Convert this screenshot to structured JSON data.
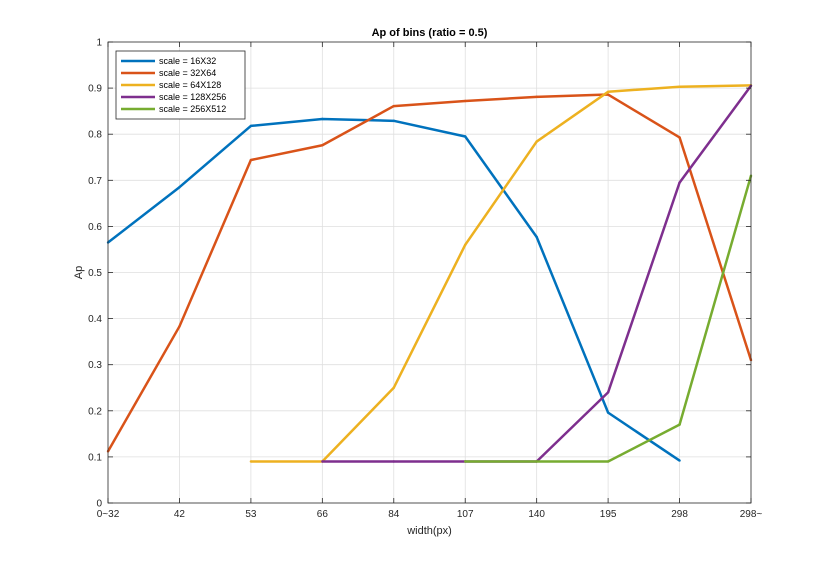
{
  "chart_data": {
    "type": "line",
    "title": "Ap of bins (ratio = 0.5)",
    "xlabel": "width(px)",
    "ylabel": "Ap",
    "categories": [
      "0~32",
      "42",
      "53",
      "66",
      "84",
      "107",
      "140",
      "195",
      "298",
      "298~"
    ],
    "ylim": [
      0,
      1
    ],
    "yticks": [
      "0",
      "0.1",
      "0.2",
      "0.3",
      "0.4",
      "0.5",
      "0.6",
      "0.7",
      "0.8",
      "0.9",
      "1"
    ],
    "grid": true,
    "legend_position": "top-left",
    "series": [
      {
        "name": "scale = 16X32",
        "color": "#0072BD",
        "values": [
          0.565,
          0.685,
          0.818,
          0.833,
          0.829,
          0.795,
          0.577,
          0.196,
          0.092,
          null
        ]
      },
      {
        "name": "scale = 32X64",
        "color": "#D95319",
        "values": [
          0.112,
          0.383,
          0.744,
          0.776,
          0.861,
          0.872,
          0.881,
          0.886,
          0.793,
          0.31
        ]
      },
      {
        "name": "scale = 64X128",
        "color": "#EDB120",
        "values": [
          null,
          null,
          0.09,
          0.09,
          0.25,
          0.56,
          0.784,
          0.892,
          0.903,
          0.906
        ]
      },
      {
        "name": "scale = 128X256",
        "color": "#7E2F8E",
        "values": [
          null,
          null,
          null,
          0.09,
          0.09,
          0.09,
          0.09,
          0.24,
          0.695,
          0.905
        ]
      },
      {
        "name": "scale = 256X512",
        "color": "#77AC30",
        "values": [
          null,
          null,
          null,
          null,
          null,
          0.09,
          0.09,
          0.09,
          0.17,
          0.71
        ]
      }
    ]
  }
}
